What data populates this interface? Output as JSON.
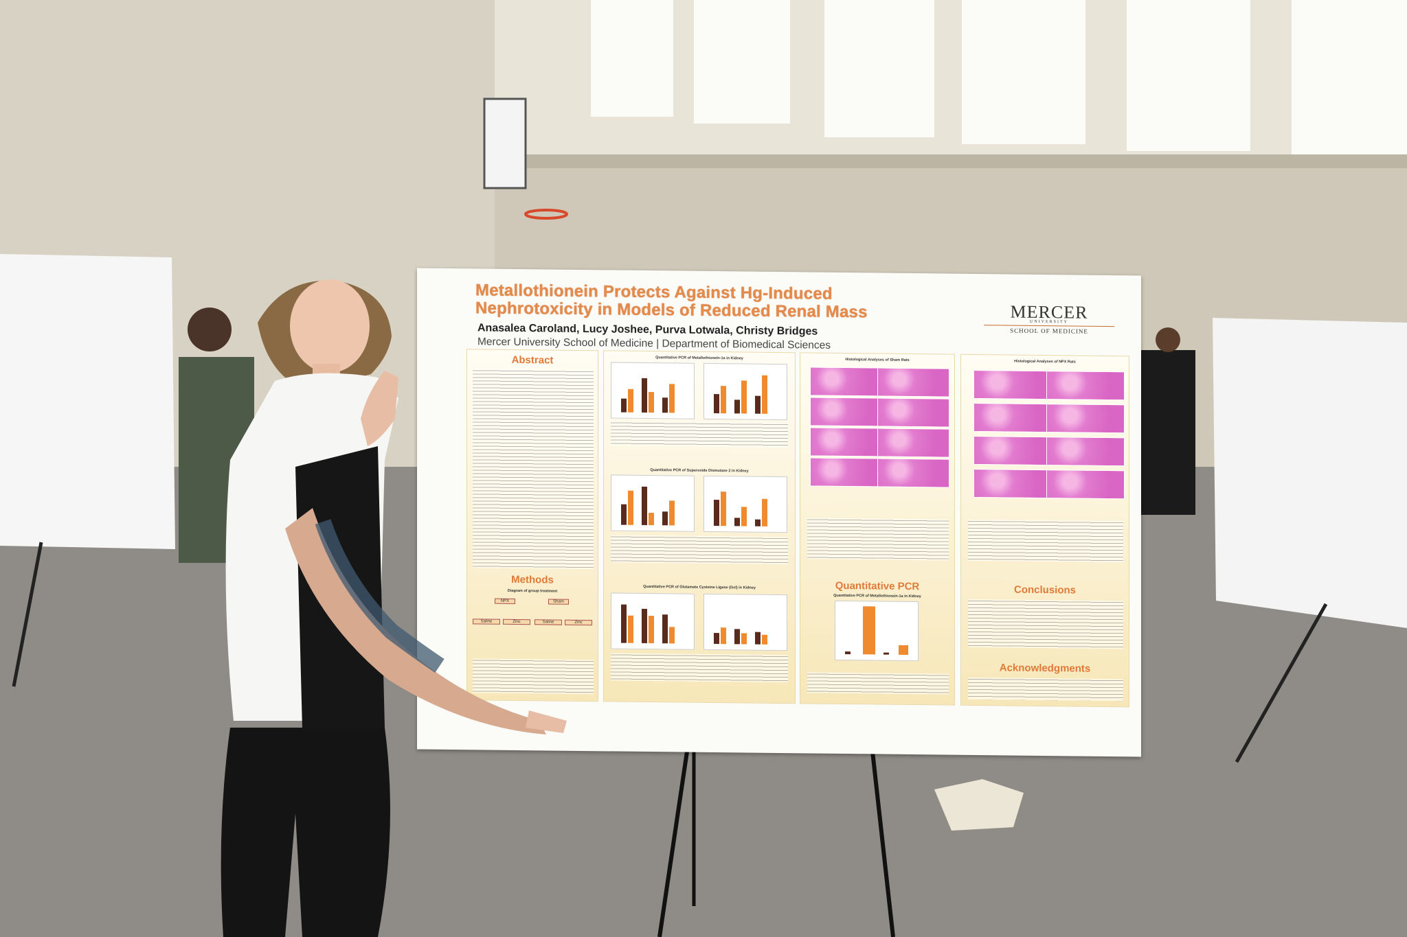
{
  "poster": {
    "title_line1": "Metallothionein Protects Against Hg-Induced",
    "title_line2": "Nephrotoxicity in Models of Reduced Renal Mass",
    "authors": "Anasalea Caroland, Lucy Joshee, Purva Lotwala, Christy Bridges",
    "affiliation": "Mercer University School of Medicine | Department of Biomedical Sciences",
    "logo": {
      "name": "MERCER",
      "subtitle": "UNIVERSITY",
      "school": "SCHOOL OF MEDICINE"
    },
    "sections": {
      "abstract": "Abstract",
      "methods": "Methods",
      "qpcr": "Quantitative PCR",
      "conclusions": "Conclusions",
      "acknowledgments": "Acknowledgments"
    },
    "figures": {
      "mt1a": "Quantitative PCR of Metallothionein-1a in Kidney",
      "sod2": "Quantitative PCR of Superoxide Dismutase 2 in Kidney",
      "gcl": "Quantitative PCR of Glutamate Cysteine Ligase (Gcl) in Kidney",
      "sham": "Histological Analyses of Sham Rats",
      "npx": "Histological Analyses of NPX Rats",
      "diagram": "Diagram of group treatment"
    },
    "diagram": {
      "npx": "NPX",
      "sham": "Sham",
      "saline": "Saline",
      "zinc": "Zinc"
    }
  }
}
